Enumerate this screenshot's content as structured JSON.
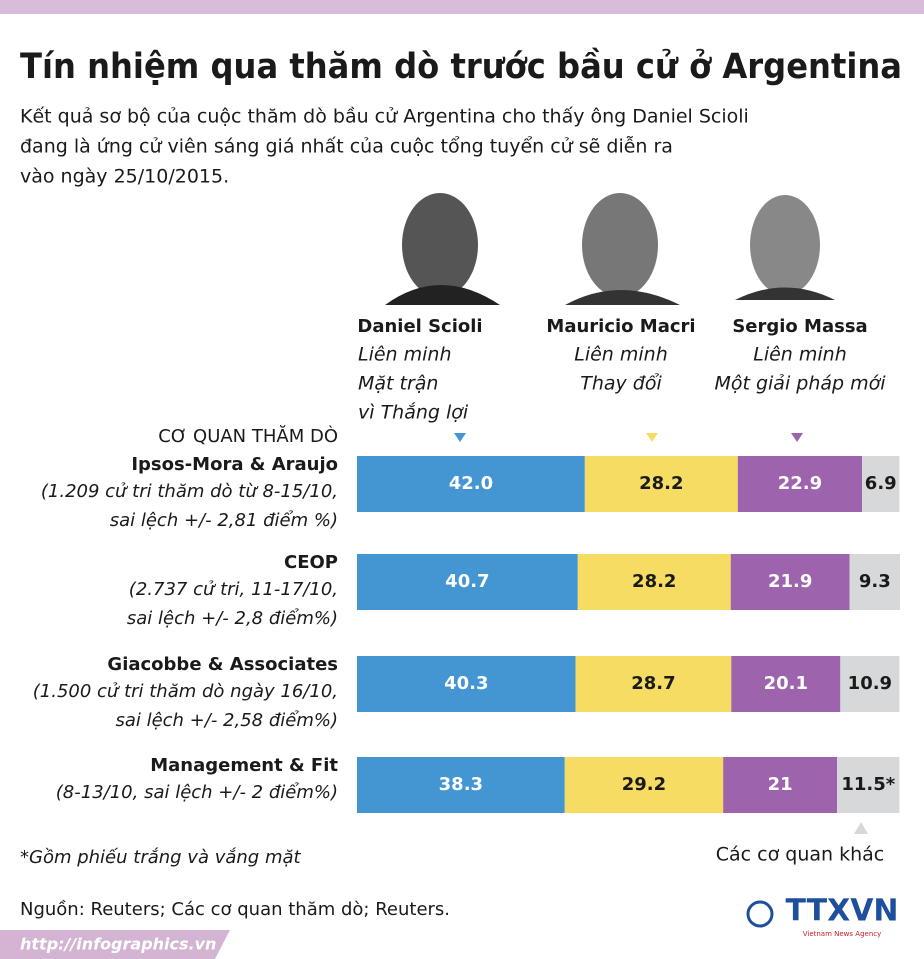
{
  "chart_data": {
    "type": "stacked-bar-horizontal",
    "title": "Tín nhiệm qua thăm dò trước bầu cử ở Argentina",
    "subtitle": [
      "Kết quả sơ bộ của cuộc thăm dò bầu cử Argentina cho thấy ông Daniel Scioli",
      "đang là ứng cử viên sáng giá nhất của cuộc tổng tuyển cử sẽ diễn ra",
      "vào ngày 25/10/2015."
    ],
    "category_header": "CƠ QUAN THĂM DÒ",
    "categories": [
      "Ipsos-Mora & Araujo",
      "CEOP",
      "Giacobbe & Associates",
      "Management & Fit"
    ],
    "category_notes": [
      [
        "(1.209 cử tri thăm dò từ 8-15/10,",
        "sai lệch +/- 2,81 điểm %)"
      ],
      [
        "(2.737 cử tri, 11-17/10,",
        "sai lệch +/- 2,8 điểm%)"
      ],
      [
        "(1.500 cử tri thăm dò ngày 16/10,",
        "sai lệch +/- 2,58 điểm%)"
      ],
      [
        "(8-13/10, sai lệch +/- 2 điểm%)"
      ]
    ],
    "series": [
      {
        "name": "Daniel Scioli",
        "party": [
          "Liên minh",
          "Mặt trận",
          "vì Thắng lợi"
        ],
        "color": "#4496d3",
        "values": [
          42.0,
          40.7,
          40.3,
          38.3
        ],
        "value_labels": [
          "42.0",
          "40.7",
          "40.3",
          "38.3"
        ]
      },
      {
        "name": "Mauricio Macri",
        "party": [
          "Liên minh",
          "Thay đổi"
        ],
        "color": "#f7dc63",
        "values": [
          28.2,
          28.2,
          28.7,
          29.2
        ]
      },
      {
        "name": "Sergio Massa",
        "party": [
          "Liên minh",
          "Một giải pháp mới"
        ],
        "color": "#9e63ad",
        "values": [
          22.9,
          21.9,
          20.1,
          21
        ]
      },
      {
        "name": "Các cơ quan khác",
        "color": "#d7d8d9",
        "values": [
          6.9,
          9.3,
          10.9,
          11.5
        ],
        "value_labels": [
          "6.9",
          "9.3",
          "10.9",
          "11.5*"
        ]
      }
    ],
    "footnote": "*Gồm phiếu trắng và vắng mặt",
    "source": "Nguồn: Reuters; Các cơ quan thăm dò; Reuters.",
    "url": "http://infographics.vn",
    "logo": "TTXVN",
    "logo_tagline": "Vietnam News Agency"
  }
}
